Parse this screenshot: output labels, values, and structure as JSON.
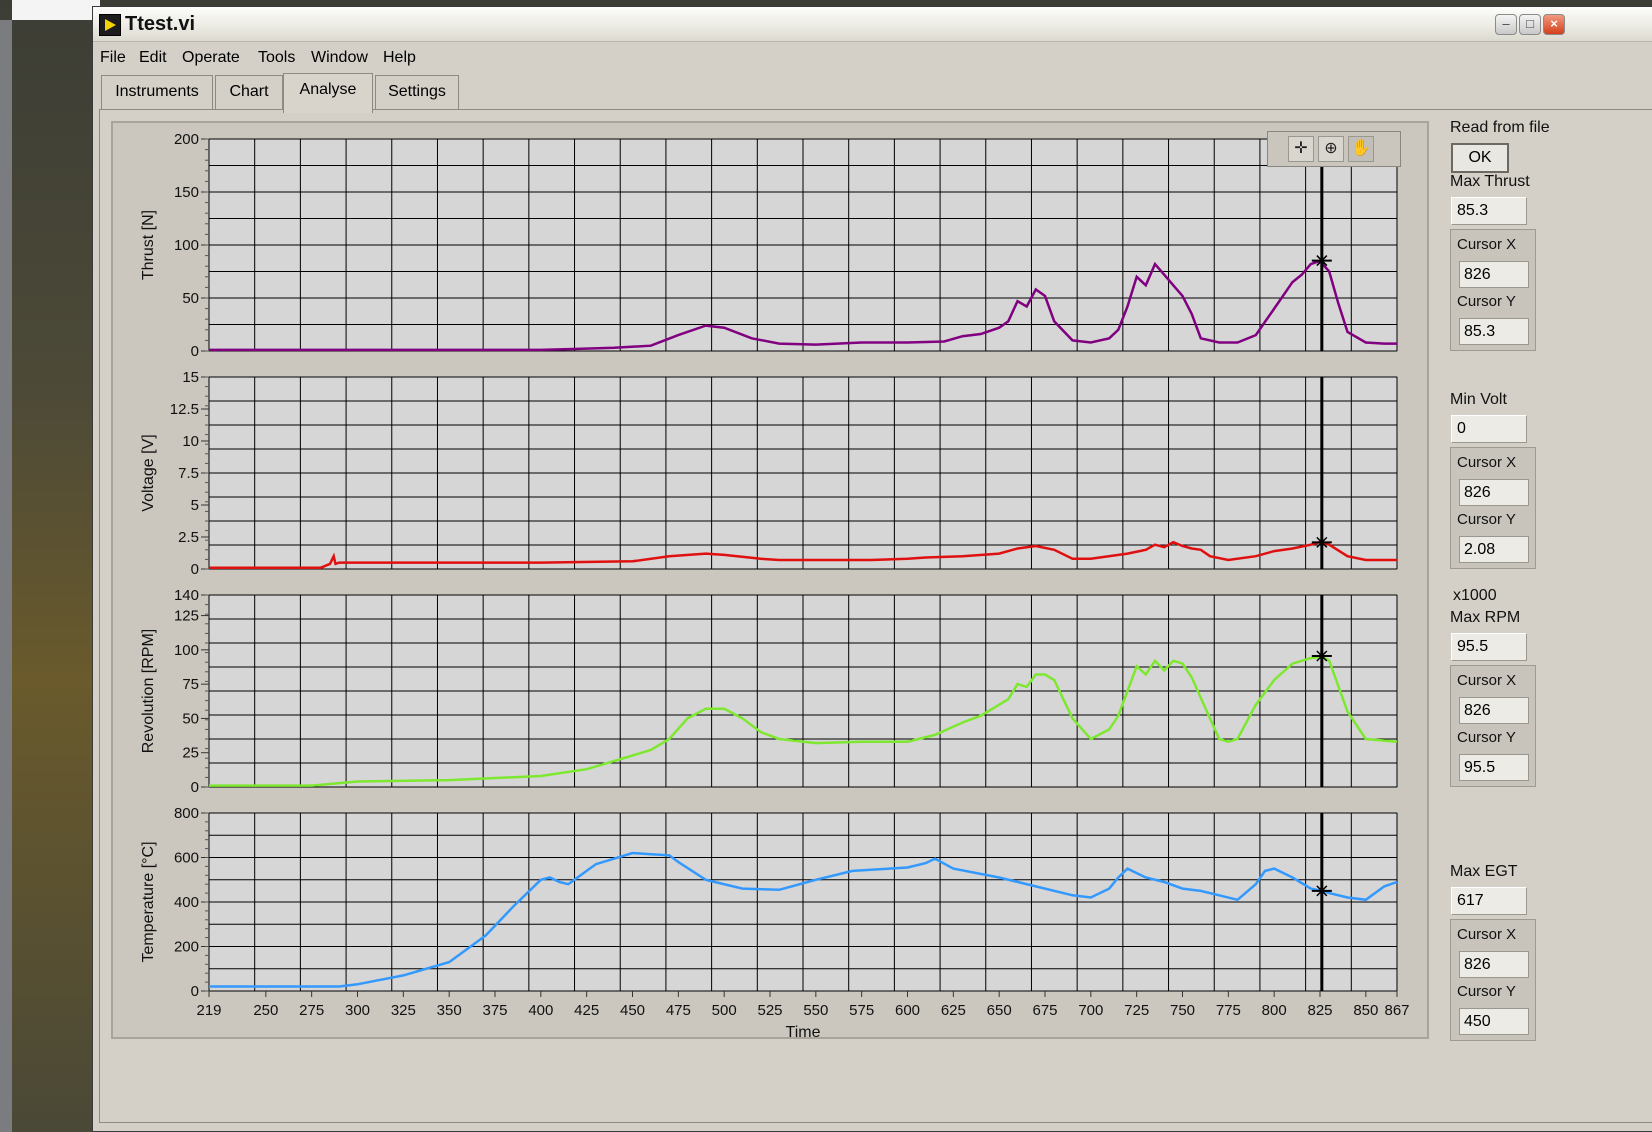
{
  "window": {
    "title": "Ttest.vi"
  },
  "menu": [
    "File",
    "Edit",
    "Operate",
    "Tools",
    "Window",
    "Help"
  ],
  "tabs": [
    {
      "label": "Instruments"
    },
    {
      "label": "Chart"
    },
    {
      "label": "Analyse"
    },
    {
      "label": "Settings"
    }
  ],
  "active_tab": "Analyse",
  "palette_icons": [
    "cursor-move-icon",
    "zoom-icon",
    "pan-hand-icon"
  ],
  "panel": {
    "read_from_file_label": "Read from file",
    "ok_label": "OK",
    "thrust": {
      "max_label": "Max Thrust",
      "max_value": "85.3",
      "cursor_x_label": "Cursor X",
      "cursor_x": "826",
      "cursor_y_label": "Cursor Y",
      "cursor_y": "85.3"
    },
    "volt": {
      "min_label": "Min Volt",
      "min_value": "0",
      "cursor_x_label": "Cursor X",
      "cursor_x": "826",
      "cursor_y_label": "Cursor Y",
      "cursor_y": "2.08"
    },
    "rpm": {
      "scale_label": "x1000",
      "max_label": "Max RPM",
      "max_value": "95.5",
      "cursor_x_label": "Cursor X",
      "cursor_x": "826",
      "cursor_y_label": "Cursor Y",
      "cursor_y": "95.5"
    },
    "egt": {
      "max_label": "Max EGT",
      "max_value": "617",
      "cursor_x_label": "Cursor X",
      "cursor_x": "826",
      "cursor_y_label": "Cursor Y",
      "cursor_y": "450"
    }
  },
  "chart_data": [
    {
      "type": "line",
      "ylabel": "Thrust [N]",
      "xlabel": "",
      "xlim": [
        219,
        867
      ],
      "ylim": [
        0,
        200
      ],
      "yticks": [
        0,
        50,
        100,
        150,
        200
      ],
      "ytick_labels": [
        "0",
        "50",
        "100",
        "150",
        "200"
      ],
      "color": "#800080",
      "cursor_x": 826,
      "cursor_y": 85.3,
      "x": [
        219,
        300,
        400,
        420,
        440,
        460,
        475,
        490,
        500,
        515,
        530,
        550,
        575,
        600,
        620,
        630,
        640,
        650,
        655,
        660,
        665,
        670,
        675,
        680,
        690,
        700,
        710,
        715,
        720,
        725,
        730,
        735,
        740,
        745,
        750,
        755,
        760,
        770,
        780,
        790,
        800,
        810,
        815,
        820,
        825,
        830,
        835,
        840,
        850,
        860,
        867
      ],
      "y": [
        1,
        1,
        1,
        2,
        3,
        5,
        15,
        24,
        22,
        12,
        7,
        6,
        8,
        8,
        9,
        14,
        16,
        22,
        28,
        47,
        42,
        58,
        52,
        28,
        10,
        8,
        12,
        20,
        42,
        70,
        62,
        82,
        72,
        62,
        52,
        35,
        12,
        8,
        8,
        15,
        40,
        65,
        72,
        82,
        85,
        75,
        45,
        18,
        8,
        7,
        7
      ]
    },
    {
      "type": "line",
      "ylabel": "Voltage [V]",
      "xlabel": "",
      "xlim": [
        219,
        867
      ],
      "ylim": [
        0,
        15
      ],
      "yticks": [
        0,
        2.5,
        5,
        7.5,
        10,
        12.5,
        15
      ],
      "ytick_labels": [
        "0",
        "2.5",
        "5",
        "7.5",
        "10",
        "12.5",
        "15"
      ],
      "color": "#e01010",
      "cursor_x": 826,
      "cursor_y": 2.08,
      "x": [
        219,
        280,
        285,
        287,
        288,
        290,
        300,
        350,
        400,
        450,
        470,
        490,
        500,
        520,
        530,
        550,
        580,
        600,
        610,
        630,
        650,
        660,
        670,
        680,
        690,
        700,
        720,
        730,
        735,
        740,
        745,
        750,
        755,
        760,
        765,
        775,
        790,
        800,
        810,
        820,
        825,
        830,
        840,
        850,
        867
      ],
      "y": [
        0.1,
        0.1,
        0.4,
        1.0,
        0.4,
        0.5,
        0.5,
        0.5,
        0.5,
        0.6,
        1.0,
        1.2,
        1.1,
        0.8,
        0.7,
        0.7,
        0.7,
        0.8,
        0.9,
        1.0,
        1.2,
        1.6,
        1.8,
        1.5,
        0.8,
        0.8,
        1.2,
        1.5,
        1.9,
        1.7,
        2.1,
        1.8,
        1.6,
        1.5,
        1.0,
        0.7,
        1.0,
        1.4,
        1.6,
        1.9,
        2.1,
        1.9,
        1.0,
        0.7,
        0.7
      ]
    },
    {
      "type": "line",
      "ylabel": "Revolution [RPM]",
      "xlabel": "",
      "xlim": [
        219,
        867
      ],
      "ylim": [
        0,
        140
      ],
      "yticks": [
        0,
        25,
        50,
        75,
        100,
        125,
        140
      ],
      "ytick_labels": [
        "0",
        "25",
        "50",
        "75",
        "100",
        "125",
        "140"
      ],
      "color": "#7ee830",
      "cursor_x": 826,
      "cursor_y": 95.5,
      "x": [
        219,
        275,
        300,
        350,
        400,
        425,
        450,
        460,
        470,
        480,
        490,
        500,
        510,
        520,
        530,
        550,
        575,
        600,
        615,
        630,
        640,
        650,
        655,
        660,
        665,
        670,
        675,
        680,
        690,
        700,
        710,
        715,
        725,
        730,
        735,
        740,
        745,
        750,
        755,
        760,
        770,
        775,
        780,
        790,
        800,
        810,
        820,
        826,
        830,
        840,
        850,
        867
      ],
      "y": [
        1,
        1,
        4,
        5,
        8,
        13,
        23,
        27,
        35,
        50,
        57,
        57,
        50,
        40,
        35,
        32,
        33,
        33,
        38,
        47,
        52,
        60,
        64,
        75,
        73,
        82,
        82,
        78,
        50,
        35,
        42,
        52,
        88,
        82,
        92,
        85,
        92,
        90,
        80,
        65,
        35,
        33,
        35,
        60,
        78,
        90,
        94,
        95,
        92,
        55,
        35,
        33
      ]
    },
    {
      "type": "line",
      "ylabel": "Temperature [°C]",
      "xlabel": "Time",
      "xlim": [
        219,
        867
      ],
      "ylim": [
        0,
        800
      ],
      "yticks": [
        0,
        200,
        400,
        600,
        800
      ],
      "ytick_labels": [
        "0",
        "200",
        "400",
        "600",
        "800"
      ],
      "color": "#3399ff",
      "cursor_x": 826,
      "cursor_y": 450,
      "x": [
        219,
        260,
        290,
        300,
        325,
        350,
        370,
        385,
        400,
        405,
        410,
        415,
        420,
        430,
        450,
        460,
        470,
        475,
        490,
        510,
        530,
        550,
        570,
        600,
        610,
        615,
        625,
        650,
        670,
        690,
        700,
        710,
        715,
        720,
        725,
        730,
        740,
        750,
        760,
        770,
        780,
        790,
        795,
        800,
        810,
        820,
        826,
        830,
        840,
        850,
        860,
        867
      ],
      "y": [
        20,
        20,
        20,
        30,
        70,
        130,
        250,
        380,
        500,
        510,
        490,
        480,
        510,
        570,
        620,
        615,
        610,
        580,
        500,
        460,
        455,
        500,
        540,
        555,
        575,
        595,
        550,
        510,
        470,
        430,
        420,
        460,
        510,
        550,
        530,
        510,
        490,
        460,
        450,
        430,
        410,
        480,
        540,
        550,
        510,
        460,
        450,
        440,
        420,
        410,
        470,
        490
      ]
    }
  ],
  "x_axis": {
    "label": "Time",
    "ticks": [
      219,
      250,
      275,
      300,
      325,
      350,
      375,
      400,
      425,
      450,
      475,
      500,
      525,
      550,
      575,
      600,
      625,
      650,
      675,
      700,
      725,
      750,
      775,
      800,
      825,
      850,
      867
    ],
    "tick_labels": [
      "219",
      "250",
      "275",
      "300",
      "325",
      "350",
      "375",
      "400",
      "425",
      "450",
      "475",
      "500",
      "525",
      "550",
      "575",
      "600",
      "625",
      "650",
      "675",
      "700",
      "725",
      "750",
      "775",
      "800",
      "825",
      "850",
      "867"
    ]
  }
}
